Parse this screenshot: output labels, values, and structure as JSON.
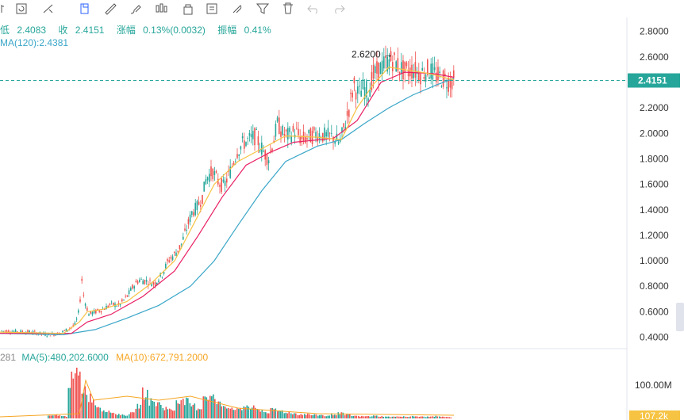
{
  "toolbar": {
    "icons": [
      "candle-type-icon",
      "refresh-icon",
      "trend-line-icon",
      "copy-icon",
      "ruler-icon",
      "brush-icon",
      "candle-icon",
      "lock-icon",
      "note-icon",
      "magnet-icon",
      "filter-icon",
      "delete-icon",
      "undo-icon",
      "redo-icon"
    ]
  },
  "info": {
    "low_label": "低",
    "low_value": "2.4083",
    "close_label": "收",
    "close_value": "2.4151",
    "change_label": "涨幅",
    "change_value": "0.13%(0.0032)",
    "amp_label": "振幅",
    "amp_value": "0.41%",
    "ma_label": "MA(120):",
    "ma_value": "2.4381"
  },
  "volume_info": {
    "first_value": "281",
    "ma5_label": "MA(5):",
    "ma5_value": "480,202.6000",
    "ma10_label": "MA(10):",
    "ma10_value": "672,791.2000"
  },
  "colors": {
    "up": "#26a69a",
    "down": "#ef5350",
    "ma5": "#f6c343",
    "ma10": "#e91e63",
    "ma120": "#3aa6c8",
    "price_tag": "#26a69a",
    "volume_tag": "#f6c343"
  },
  "chart_data": {
    "type": "candlestick",
    "y_ticks": [
      "2.8000",
      "2.6000",
      "2.4000",
      "2.2000",
      "2.0000",
      "1.8000",
      "1.6000",
      "1.4000",
      "1.2000",
      "1.0000",
      "0.8000",
      "0.6000",
      "0.4000"
    ],
    "ylim": [
      0.36,
      2.86
    ],
    "current_price": "2.4151",
    "max_label": "2.6200",
    "volume_tick": "100.00M",
    "volume_current": "107.2k",
    "price_path": [
      [
        0,
        0.45
      ],
      [
        40,
        0.44
      ],
      [
        60,
        0.42
      ],
      [
        75,
        0.43
      ],
      [
        85,
        0.46
      ],
      [
        95,
        0.5
      ],
      [
        100,
        0.62
      ],
      [
        103,
        0.86
      ],
      [
        106,
        0.7
      ],
      [
        112,
        0.58
      ],
      [
        120,
        0.6
      ],
      [
        130,
        0.62
      ],
      [
        140,
        0.66
      ],
      [
        150,
        0.65
      ],
      [
        160,
        0.72
      ],
      [
        168,
        0.8
      ],
      [
        175,
        0.85
      ],
      [
        185,
        0.84
      ],
      [
        195,
        0.82
      ],
      [
        205,
        0.9
      ],
      [
        212,
        1.0
      ],
      [
        220,
        1.05
      ],
      [
        228,
        1.12
      ],
      [
        235,
        1.25
      ],
      [
        242,
        1.38
      ],
      [
        248,
        1.42
      ],
      [
        255,
        1.5
      ],
      [
        260,
        1.65
      ],
      [
        268,
        1.7
      ],
      [
        275,
        1.62
      ],
      [
        282,
        1.58
      ],
      [
        290,
        1.7
      ],
      [
        298,
        1.85
      ],
      [
        306,
        1.92
      ],
      [
        314,
        1.95
      ],
      [
        322,
        1.98
      ],
      [
        330,
        1.88
      ],
      [
        338,
        1.8
      ],
      [
        345,
        1.95
      ],
      [
        350,
        2.08
      ],
      [
        356,
        2.0
      ],
      [
        364,
        1.98
      ],
      [
        372,
        2.02
      ],
      [
        380,
        1.95
      ],
      [
        390,
        1.97
      ],
      [
        400,
        2.0
      ],
      [
        410,
        1.98
      ],
      [
        420,
        1.97
      ],
      [
        428,
        1.92
      ],
      [
        434,
        2.05
      ],
      [
        440,
        2.2
      ],
      [
        446,
        2.38
      ],
      [
        452,
        2.3
      ],
      [
        458,
        2.36
      ],
      [
        464,
        2.32
      ],
      [
        470,
        2.45
      ],
      [
        478,
        2.5
      ],
      [
        486,
        2.55
      ],
      [
        494,
        2.58
      ],
      [
        502,
        2.53
      ],
      [
        510,
        2.48
      ],
      [
        520,
        2.5
      ],
      [
        530,
        2.47
      ],
      [
        540,
        2.5
      ],
      [
        550,
        2.45
      ],
      [
        558,
        2.43
      ],
      [
        565,
        2.41
      ],
      [
        572,
        2.415
      ]
    ],
    "ma5_path": [
      [
        0,
        0.44
      ],
      [
        80,
        0.43
      ],
      [
        100,
        0.52
      ],
      [
        110,
        0.6
      ],
      [
        130,
        0.62
      ],
      [
        160,
        0.68
      ],
      [
        190,
        0.82
      ],
      [
        220,
        1.0
      ],
      [
        245,
        1.3
      ],
      [
        270,
        1.6
      ],
      [
        300,
        1.78
      ],
      [
        330,
        1.88
      ],
      [
        360,
        1.98
      ],
      [
        400,
        1.97
      ],
      [
        430,
        1.95
      ],
      [
        450,
        2.2
      ],
      [
        470,
        2.38
      ],
      [
        490,
        2.52
      ],
      [
        510,
        2.5
      ],
      [
        540,
        2.47
      ],
      [
        572,
        2.42
      ]
    ],
    "ma10_path": [
      [
        0,
        0.43
      ],
      [
        90,
        0.43
      ],
      [
        110,
        0.52
      ],
      [
        140,
        0.58
      ],
      [
        180,
        0.72
      ],
      [
        220,
        0.92
      ],
      [
        250,
        1.2
      ],
      [
        280,
        1.5
      ],
      [
        310,
        1.75
      ],
      [
        340,
        1.85
      ],
      [
        370,
        1.93
      ],
      [
        420,
        1.96
      ],
      [
        450,
        2.1
      ],
      [
        480,
        2.4
      ],
      [
        510,
        2.48
      ],
      [
        545,
        2.47
      ],
      [
        572,
        2.44
      ]
    ],
    "ma120_path": [
      [
        0,
        0.43
      ],
      [
        80,
        0.42
      ],
      [
        120,
        0.46
      ],
      [
        160,
        0.55
      ],
      [
        200,
        0.65
      ],
      [
        240,
        0.8
      ],
      [
        270,
        1.0
      ],
      [
        300,
        1.28
      ],
      [
        330,
        1.55
      ],
      [
        360,
        1.78
      ],
      [
        400,
        1.9
      ],
      [
        430,
        1.95
      ],
      [
        460,
        2.08
      ],
      [
        490,
        2.2
      ],
      [
        520,
        2.3
      ],
      [
        550,
        2.38
      ],
      [
        572,
        2.43
      ]
    ],
    "volume_bars": [
      0.06,
      0.08,
      0.05,
      0.9,
      1.0,
      0.7,
      0.5,
      0.3,
      0.2,
      0.15,
      0.1,
      0.08,
      0.12,
      0.3,
      0.6,
      0.4,
      0.35,
      0.25,
      0.2,
      0.45,
      0.4,
      0.3,
      0.25,
      0.55,
      0.5,
      0.35,
      0.3,
      0.25,
      0.2,
      0.3,
      0.25,
      0.2,
      0.15,
      0.2,
      0.18,
      0.15,
      0.12,
      0.1,
      0.1,
      0.08,
      0.08,
      0.06,
      0.1,
      0.12,
      0.08,
      0.06,
      0.05,
      0.05,
      0.06,
      0.05,
      0.04,
      0.04,
      0.05,
      0.04,
      0.05,
      0.04,
      0.04,
      0.05,
      0.04,
      0.03
    ]
  }
}
